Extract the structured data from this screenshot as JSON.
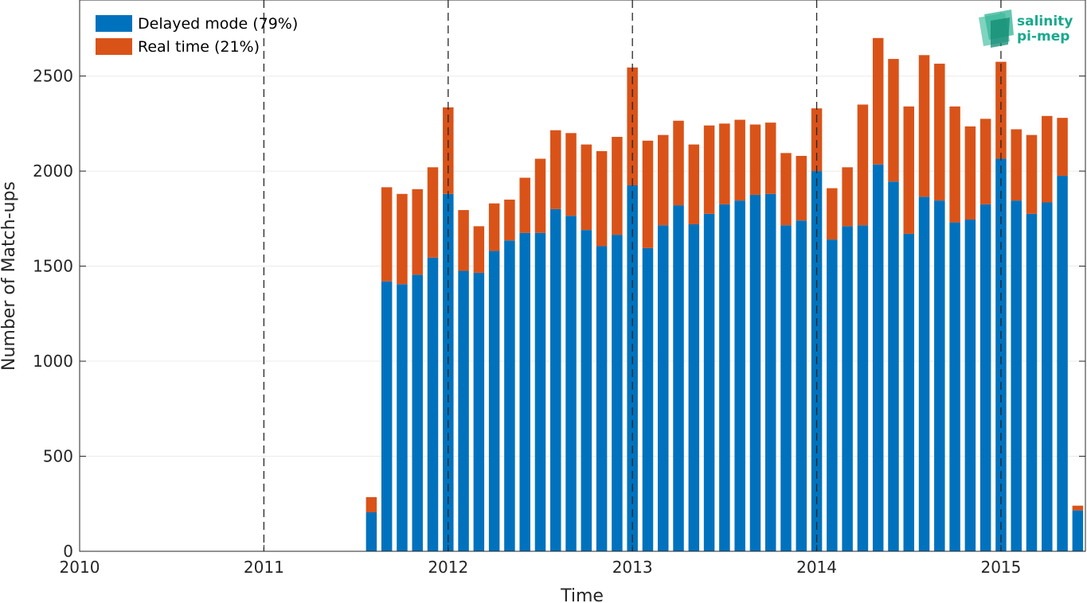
{
  "chart_data": {
    "type": "bar",
    "stacked": true,
    "xlabel": "Time",
    "ylabel": "Number of Match-ups",
    "xlim": [
      "2010-01",
      "2015-06"
    ],
    "ylim": [
      0,
      2900
    ],
    "x_ticks": [
      "2010",
      "2011",
      "2012",
      "2013",
      "2014",
      "2015"
    ],
    "y_ticks": [
      0,
      500,
      1000,
      1500,
      2000,
      2500
    ],
    "grid": "horizontal",
    "legend": "top-left",
    "year_dividers": [
      "2011",
      "2012",
      "2013",
      "2014",
      "2015"
    ],
    "months": [
      "2011-08",
      "2011-09",
      "2011-10",
      "2011-11",
      "2011-12",
      "2012-01",
      "2012-02",
      "2012-03",
      "2012-04",
      "2012-05",
      "2012-06",
      "2012-07",
      "2012-08",
      "2012-09",
      "2012-10",
      "2012-11",
      "2012-12",
      "2013-01",
      "2013-02",
      "2013-03",
      "2013-04",
      "2013-05",
      "2013-06",
      "2013-07",
      "2013-08",
      "2013-09",
      "2013-10",
      "2013-11",
      "2013-12",
      "2014-01",
      "2014-02",
      "2014-03",
      "2014-04",
      "2014-05",
      "2014-06",
      "2014-07",
      "2014-08",
      "2014-09",
      "2014-10",
      "2014-11",
      "2014-12",
      "2015-01",
      "2015-02",
      "2015-03",
      "2015-04",
      "2015-05",
      "2015-06"
    ],
    "series": [
      {
        "name": "Delayed mode (79%)",
        "color": "#0072bd",
        "values": [
          205,
          1420,
          1405,
          1455,
          1545,
          1880,
          1475,
          1465,
          1580,
          1635,
          1675,
          1675,
          1800,
          1765,
          1690,
          1605,
          1665,
          1925,
          1595,
          1715,
          1820,
          1720,
          1775,
          1825,
          1845,
          1875,
          1880,
          1715,
          1740,
          2000,
          1640,
          1710,
          1715,
          2035,
          1945,
          1670,
          1865,
          1845,
          1730,
          1745,
          1825,
          2065,
          1845,
          1775,
          1835,
          1975,
          215
        ]
      },
      {
        "name": "Real time (21%)",
        "color": "#d95319",
        "values": [
          80,
          495,
          475,
          450,
          475,
          455,
          320,
          245,
          250,
          215,
          290,
          390,
          415,
          435,
          450,
          500,
          515,
          620,
          565,
          475,
          445,
          420,
          465,
          425,
          425,
          370,
          375,
          380,
          340,
          330,
          270,
          310,
          635,
          665,
          645,
          670,
          745,
          720,
          610,
          490,
          450,
          510,
          375,
          415,
          455,
          305,
          25
        ]
      }
    ]
  },
  "logo": {
    "line1": "salinity",
    "line2": "pi-mep"
  }
}
